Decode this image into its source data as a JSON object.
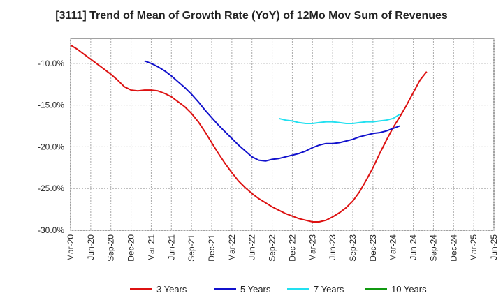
{
  "chart_data": {
    "type": "line",
    "title": "[3111]  Trend of Mean of Growth Rate (YoY) of 12Mo Mov Sum of Revenues",
    "xlabel": "",
    "ylabel": "",
    "ylim": [
      -30.0,
      -7.0
    ],
    "y_ticks": [
      -30.0,
      -25.0,
      -20.0,
      -15.0,
      -10.0
    ],
    "y_tick_labels": [
      "-30.0%",
      "-25.0%",
      "-20.0%",
      "-15.0%",
      "-10.0%"
    ],
    "x_ticks": [
      "Mar-20",
      "Jun-20",
      "Sep-20",
      "Dec-20",
      "Mar-21",
      "Jun-21",
      "Sep-21",
      "Dec-21",
      "Mar-22",
      "Jun-22",
      "Sep-22",
      "Dec-22",
      "Mar-23",
      "Jun-23",
      "Sep-23",
      "Dec-23",
      "Mar-24",
      "Jun-24",
      "Sep-24",
      "Dec-24",
      "Mar-25",
      "Jun-25"
    ],
    "grid": true,
    "legend_position": "bottom",
    "series": [
      {
        "name": "3 Years",
        "color": "#dd1111",
        "x": [
          0,
          1,
          2,
          3,
          4,
          5,
          6,
          7,
          8,
          9,
          10,
          11,
          12,
          13,
          14,
          15,
          16,
          17,
          18,
          19,
          20,
          21,
          22,
          23,
          24,
          25,
          26,
          27,
          28,
          29,
          30,
          31,
          32,
          33,
          34,
          35,
          36,
          37,
          38,
          39,
          40,
          41,
          42,
          43,
          44,
          45,
          46,
          47,
          48,
          49,
          50,
          51,
          52,
          53,
          54,
          55,
          56,
          57,
          58,
          59,
          60
        ],
        "values": [
          -7.8,
          -8.3,
          -8.9,
          -9.5,
          -10.1,
          -10.7,
          -11.3,
          -12.0,
          -12.8,
          -13.2,
          -13.3,
          -13.2,
          -13.2,
          -13.3,
          -13.6,
          -14.0,
          -14.6,
          -15.2,
          -16.0,
          -17.0,
          -18.2,
          -19.5,
          -20.8,
          -22.0,
          -23.1,
          -24.1,
          -24.9,
          -25.6,
          -26.2,
          -26.7,
          -27.2,
          -27.6,
          -28.0,
          -28.3,
          -28.6,
          -28.8,
          -29.0,
          -29.0,
          -28.8,
          -28.4,
          -27.9,
          -27.3,
          -26.5,
          -25.4,
          -24.0,
          -22.5,
          -20.8,
          -19.2,
          -17.7,
          -16.4,
          -15.0,
          -13.5,
          -12.0,
          -11.0,
          null,
          null,
          null,
          null,
          null,
          null,
          null
        ]
      },
      {
        "name": "5 Years",
        "color": "#1111cc",
        "x": [
          11,
          12,
          13,
          14,
          15,
          16,
          17,
          18,
          19,
          20,
          21,
          22,
          23,
          24,
          25,
          26,
          27,
          28,
          29,
          30,
          31,
          32,
          33,
          34,
          35,
          36,
          37,
          38,
          39,
          40,
          41,
          42,
          43,
          44,
          45,
          46,
          47,
          48,
          49,
          50,
          51,
          52,
          53
        ],
        "values": [
          -9.7,
          -10.0,
          -10.4,
          -10.9,
          -11.5,
          -12.2,
          -12.9,
          -13.7,
          -14.6,
          -15.6,
          -16.5,
          -17.4,
          -18.2,
          -19.0,
          -19.8,
          -20.5,
          -21.2,
          -21.6,
          -21.7,
          -21.5,
          -21.4,
          -21.2,
          -21.0,
          -20.8,
          -20.5,
          -20.1,
          -19.8,
          -19.6,
          -19.6,
          -19.5,
          -19.3,
          -19.1,
          -18.8,
          -18.6,
          -18.4,
          -18.3,
          -18.1,
          -17.8,
          -17.5,
          null,
          null,
          null,
          null
        ]
      },
      {
        "name": "7 Years",
        "color": "#22e0f0",
        "x": [
          31,
          32,
          33,
          34,
          35,
          36,
          37,
          38,
          39,
          40,
          41,
          42,
          43,
          44,
          45,
          46,
          47,
          48,
          49,
          50,
          51,
          52,
          53
        ],
        "values": [
          -16.6,
          -16.8,
          -16.9,
          -17.1,
          -17.2,
          -17.2,
          -17.1,
          -17.0,
          -17.0,
          -17.1,
          -17.2,
          -17.2,
          -17.1,
          -17.0,
          -17.0,
          -16.9,
          -16.8,
          -16.6,
          -16.1,
          null,
          null,
          null,
          null
        ]
      },
      {
        "name": "10 Years",
        "color": "#119911",
        "x": [],
        "values": []
      }
    ]
  }
}
